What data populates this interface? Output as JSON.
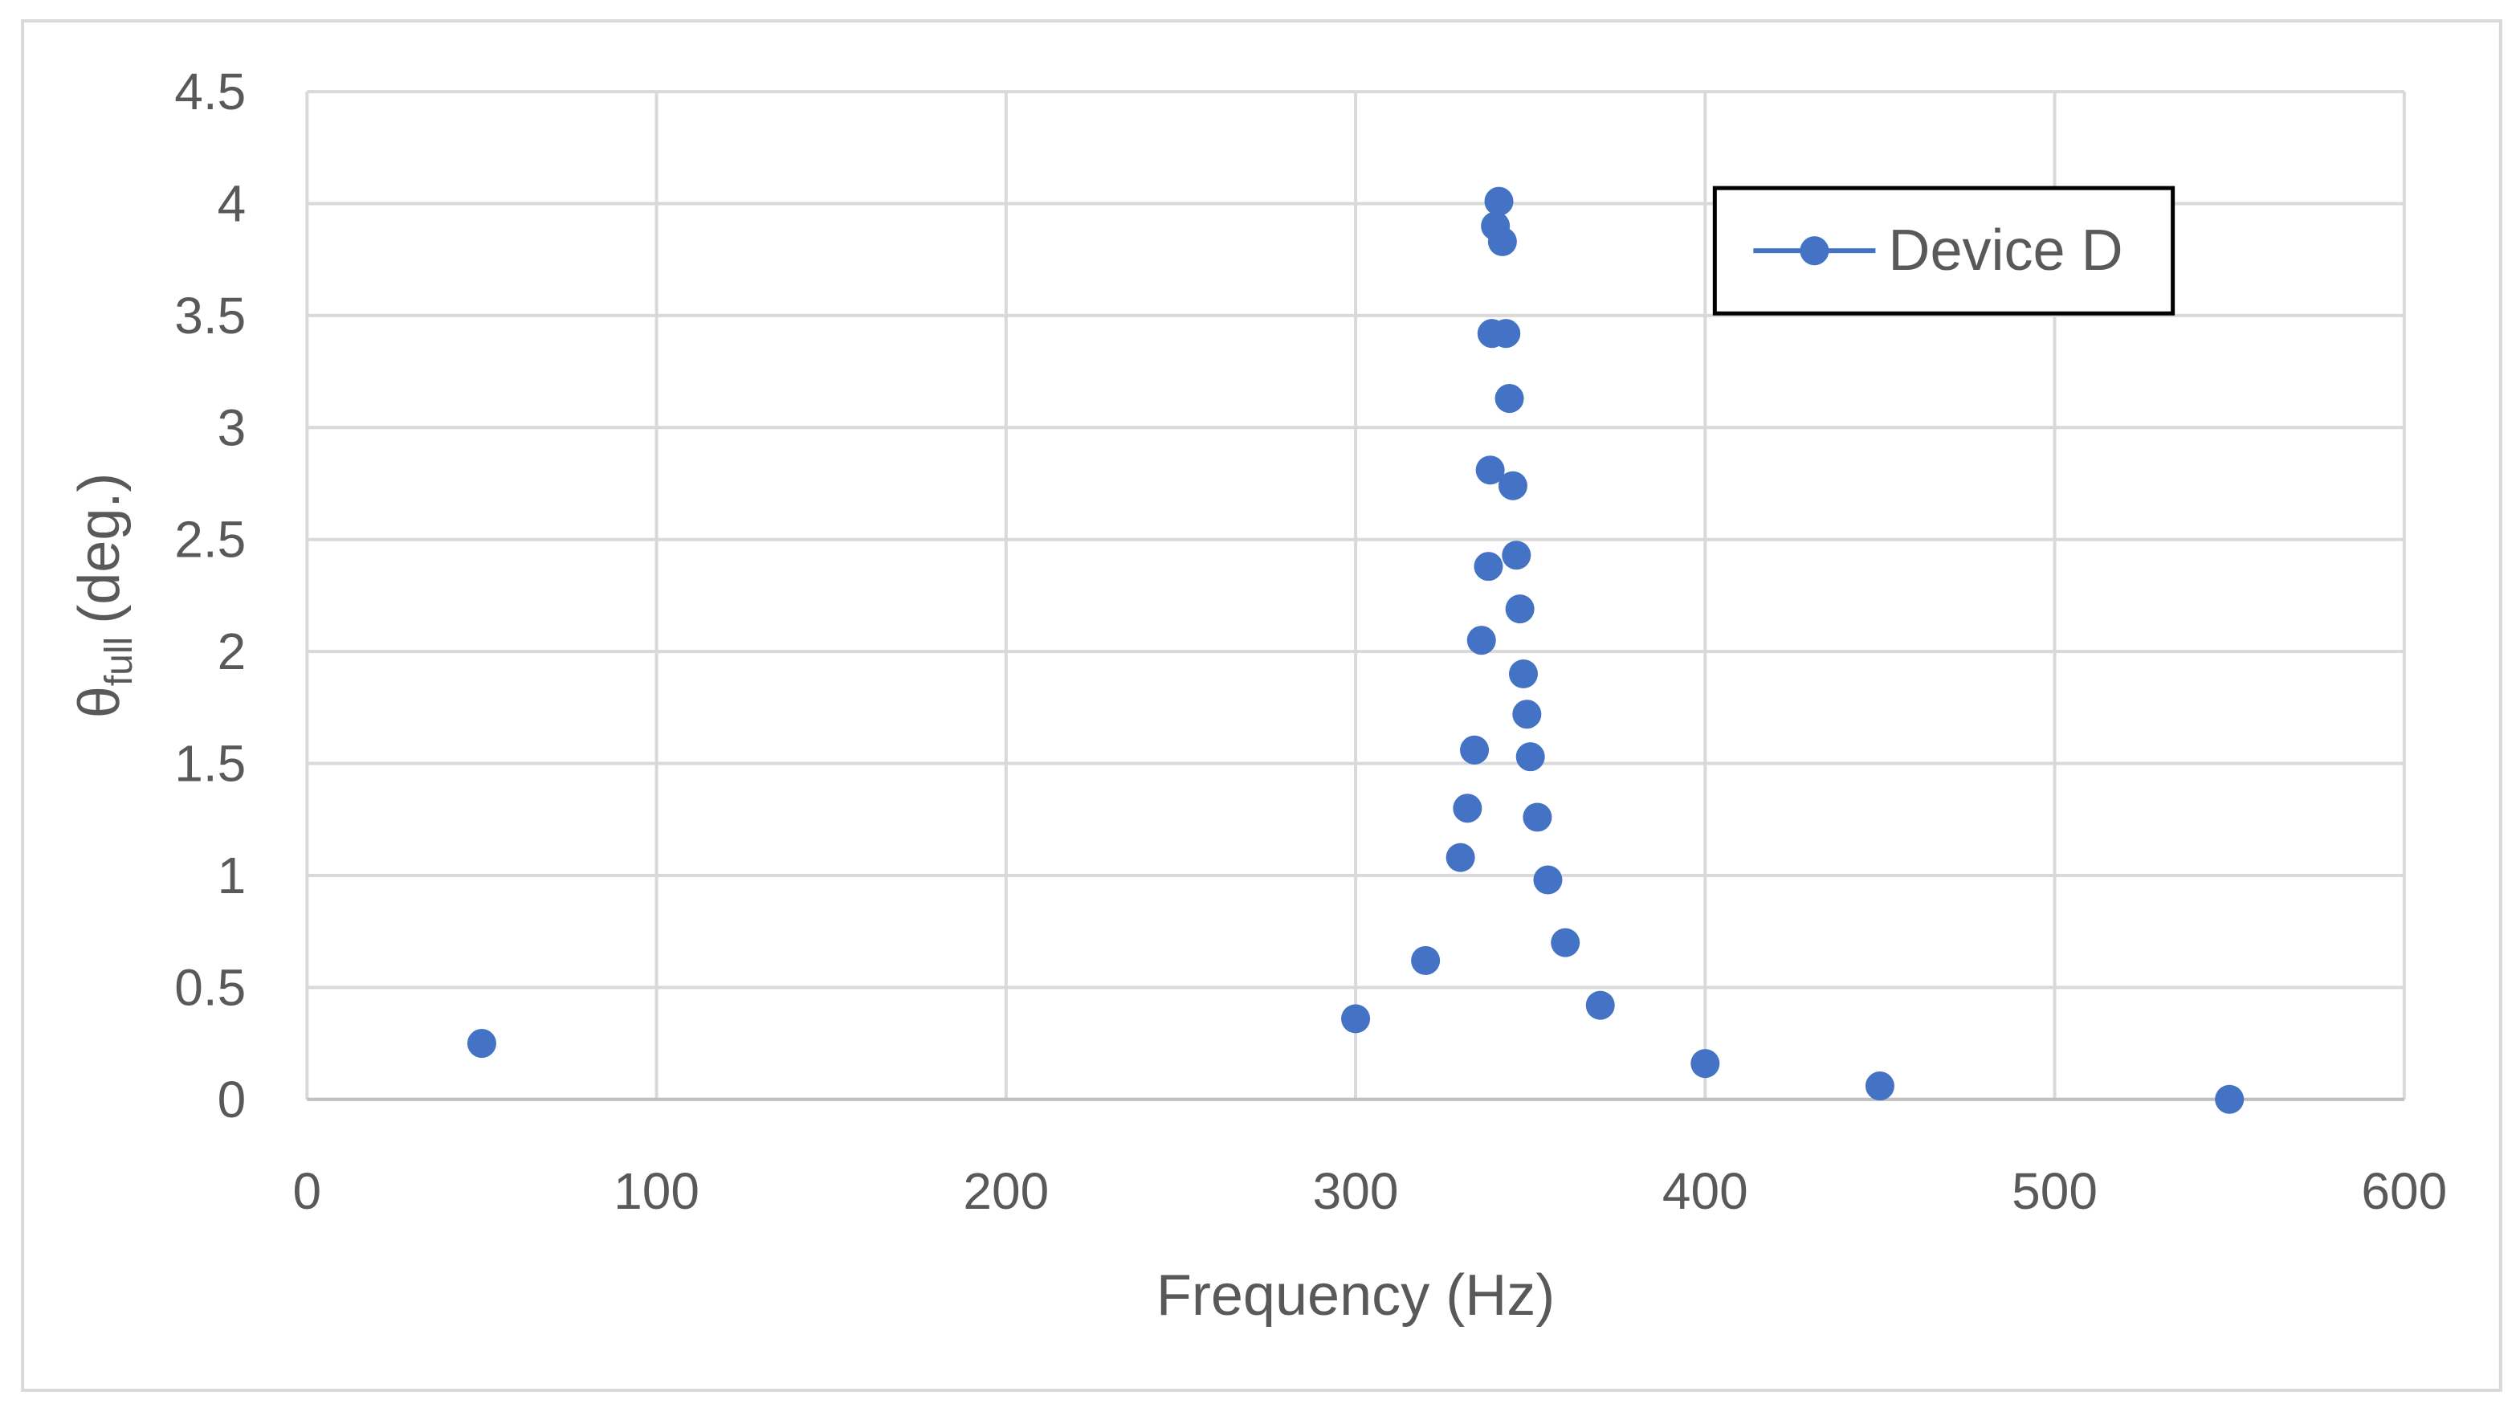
{
  "chart_data": {
    "type": "line",
    "x_label": "Frequency (Hz)",
    "y_label": "θ",
    "y_label_subscript": "full",
    "y_label_unit": "(deg.)",
    "xlim": [
      0,
      600
    ],
    "xticks": [
      0,
      100,
      200,
      300,
      400,
      500,
      600
    ],
    "ylim": [
      0,
      4.5
    ],
    "yticks": [
      0,
      0.5,
      1,
      1.5,
      2,
      2.5,
      3,
      3.5,
      4,
      4.5
    ],
    "grid": true,
    "legend": "upper right",
    "series": [
      {
        "name": "Device D",
        "color": "#4472c4",
        "x": [
          50,
          300,
          320,
          330,
          332,
          334,
          336,
          338,
          338.5,
          339,
          340,
          341,
          342,
          343,
          344,
          345,
          346,
          347,
          348,
          349,
          350,
          352,
          355,
          360,
          370,
          400,
          450,
          550
        ],
        "values": [
          0.25,
          0.36,
          0.62,
          1.08,
          1.3,
          1.56,
          2.05,
          2.38,
          2.81,
          3.42,
          3.9,
          4.01,
          3.83,
          3.42,
          3.13,
          2.74,
          2.43,
          2.19,
          1.9,
          1.72,
          1.53,
          1.26,
          0.98,
          0.7,
          0.42,
          0.16,
          0.06,
          0
        ]
      }
    ]
  }
}
